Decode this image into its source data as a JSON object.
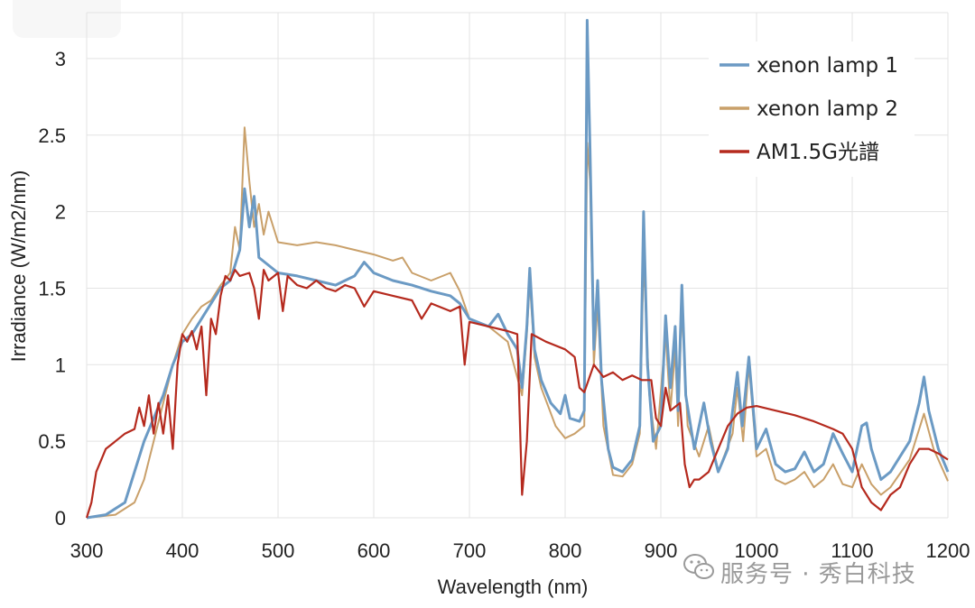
{
  "chart_data": {
    "type": "line",
    "title": "",
    "xlabel": "Wavelength (nm)",
    "ylabel": "Irradiance (W/m2/nm)",
    "xlim": [
      300,
      1200
    ],
    "ylim": [
      0,
      3.3
    ],
    "x_ticks": [
      "300",
      "400",
      "500",
      "600",
      "700",
      "800",
      "900",
      "1000",
      "1100",
      "1200"
    ],
    "y_ticks": [
      "0",
      "0.5",
      "1",
      "1.5",
      "2",
      "2.5",
      "3"
    ],
    "grid": true,
    "legend_position": "top-right",
    "series": [
      {
        "name": "xenon lamp 1",
        "color": "#6b9ac4",
        "points": [
          [
            300,
            0.0
          ],
          [
            320,
            0.02
          ],
          [
            340,
            0.1
          ],
          [
            350,
            0.3
          ],
          [
            360,
            0.5
          ],
          [
            370,
            0.65
          ],
          [
            380,
            0.8
          ],
          [
            390,
            1.0
          ],
          [
            400,
            1.15
          ],
          [
            410,
            1.2
          ],
          [
            420,
            1.3
          ],
          [
            430,
            1.4
          ],
          [
            440,
            1.5
          ],
          [
            450,
            1.55
          ],
          [
            460,
            1.75
          ],
          [
            465,
            2.15
          ],
          [
            470,
            1.9
          ],
          [
            475,
            2.1
          ],
          [
            480,
            1.7
          ],
          [
            490,
            1.65
          ],
          [
            500,
            1.6
          ],
          [
            520,
            1.58
          ],
          [
            540,
            1.55
          ],
          [
            560,
            1.52
          ],
          [
            580,
            1.58
          ],
          [
            590,
            1.67
          ],
          [
            600,
            1.6
          ],
          [
            620,
            1.55
          ],
          [
            640,
            1.52
          ],
          [
            660,
            1.48
          ],
          [
            680,
            1.45
          ],
          [
            690,
            1.4
          ],
          [
            700,
            1.3
          ],
          [
            720,
            1.25
          ],
          [
            730,
            1.33
          ],
          [
            740,
            1.2
          ],
          [
            750,
            1.1
          ],
          [
            755,
            0.85
          ],
          [
            760,
            1.25
          ],
          [
            763,
            1.63
          ],
          [
            768,
            1.1
          ],
          [
            775,
            0.9
          ],
          [
            785,
            0.75
          ],
          [
            795,
            0.68
          ],
          [
            800,
            0.8
          ],
          [
            805,
            0.65
          ],
          [
            815,
            0.63
          ],
          [
            820,
            0.7
          ],
          [
            823,
            3.25
          ],
          [
            826,
            2.4
          ],
          [
            830,
            1.1
          ],
          [
            834,
            1.55
          ],
          [
            838,
            0.9
          ],
          [
            845,
            0.45
          ],
          [
            850,
            0.33
          ],
          [
            860,
            0.3
          ],
          [
            870,
            0.38
          ],
          [
            878,
            0.6
          ],
          [
            882,
            2.0
          ],
          [
            886,
            1.0
          ],
          [
            892,
            0.5
          ],
          [
            900,
            0.6
          ],
          [
            905,
            1.32
          ],
          [
            910,
            0.85
          ],
          [
            915,
            1.25
          ],
          [
            918,
            0.7
          ],
          [
            922,
            1.52
          ],
          [
            926,
            0.8
          ],
          [
            935,
            0.45
          ],
          [
            945,
            0.75
          ],
          [
            952,
            0.5
          ],
          [
            960,
            0.3
          ],
          [
            970,
            0.45
          ],
          [
            980,
            0.95
          ],
          [
            985,
            0.6
          ],
          [
            992,
            1.05
          ],
          [
            1000,
            0.45
          ],
          [
            1010,
            0.58
          ],
          [
            1020,
            0.35
          ],
          [
            1030,
            0.3
          ],
          [
            1040,
            0.32
          ],
          [
            1050,
            0.43
          ],
          [
            1060,
            0.3
          ],
          [
            1070,
            0.35
          ],
          [
            1080,
            0.55
          ],
          [
            1090,
            0.42
          ],
          [
            1100,
            0.3
          ],
          [
            1110,
            0.6
          ],
          [
            1115,
            0.62
          ],
          [
            1120,
            0.45
          ],
          [
            1130,
            0.25
          ],
          [
            1140,
            0.3
          ],
          [
            1150,
            0.4
          ],
          [
            1160,
            0.5
          ],
          [
            1170,
            0.75
          ],
          [
            1175,
            0.92
          ],
          [
            1180,
            0.7
          ],
          [
            1190,
            0.45
          ],
          [
            1200,
            0.3
          ]
        ]
      },
      {
        "name": "xenon lamp 2",
        "color": "#c9a06a",
        "points": [
          [
            300,
            0.0
          ],
          [
            330,
            0.02
          ],
          [
            350,
            0.1
          ],
          [
            360,
            0.25
          ],
          [
            370,
            0.5
          ],
          [
            380,
            0.75
          ],
          [
            390,
            1.0
          ],
          [
            400,
            1.2
          ],
          [
            410,
            1.3
          ],
          [
            420,
            1.38
          ],
          [
            430,
            1.42
          ],
          [
            440,
            1.52
          ],
          [
            450,
            1.6
          ],
          [
            455,
            1.9
          ],
          [
            460,
            1.75
          ],
          [
            465,
            2.55
          ],
          [
            470,
            2.2
          ],
          [
            475,
            1.9
          ],
          [
            480,
            2.05
          ],
          [
            485,
            1.85
          ],
          [
            490,
            2.0
          ],
          [
            500,
            1.8
          ],
          [
            520,
            1.78
          ],
          [
            540,
            1.8
          ],
          [
            560,
            1.78
          ],
          [
            580,
            1.75
          ],
          [
            600,
            1.72
          ],
          [
            620,
            1.68
          ],
          [
            630,
            1.7
          ],
          [
            640,
            1.6
          ],
          [
            660,
            1.55
          ],
          [
            680,
            1.6
          ],
          [
            690,
            1.48
          ],
          [
            700,
            1.3
          ],
          [
            720,
            1.25
          ],
          [
            740,
            1.15
          ],
          [
            755,
            0.8
          ],
          [
            760,
            1.2
          ],
          [
            763,
            1.55
          ],
          [
            768,
            1.05
          ],
          [
            775,
            0.85
          ],
          [
            790,
            0.6
          ],
          [
            800,
            0.52
          ],
          [
            810,
            0.55
          ],
          [
            820,
            0.6
          ],
          [
            823,
            2.45
          ],
          [
            826,
            2.2
          ],
          [
            830,
            1.0
          ],
          [
            834,
            1.4
          ],
          [
            840,
            0.6
          ],
          [
            850,
            0.28
          ],
          [
            860,
            0.27
          ],
          [
            870,
            0.35
          ],
          [
            878,
            0.55
          ],
          [
            882,
            1.7
          ],
          [
            888,
            0.8
          ],
          [
            895,
            0.45
          ],
          [
            905,
            1.2
          ],
          [
            910,
            0.7
          ],
          [
            915,
            1.1
          ],
          [
            918,
            0.6
          ],
          [
            922,
            1.38
          ],
          [
            928,
            0.6
          ],
          [
            940,
            0.4
          ],
          [
            950,
            0.6
          ],
          [
            960,
            0.3
          ],
          [
            975,
            0.55
          ],
          [
            980,
            0.85
          ],
          [
            986,
            0.5
          ],
          [
            992,
            1.0
          ],
          [
            1000,
            0.4
          ],
          [
            1010,
            0.45
          ],
          [
            1020,
            0.25
          ],
          [
            1030,
            0.22
          ],
          [
            1040,
            0.25
          ],
          [
            1050,
            0.3
          ],
          [
            1060,
            0.2
          ],
          [
            1070,
            0.25
          ],
          [
            1080,
            0.35
          ],
          [
            1090,
            0.22
          ],
          [
            1100,
            0.2
          ],
          [
            1110,
            0.35
          ],
          [
            1120,
            0.22
          ],
          [
            1130,
            0.15
          ],
          [
            1140,
            0.2
          ],
          [
            1160,
            0.38
          ],
          [
            1175,
            0.68
          ],
          [
            1185,
            0.45
          ],
          [
            1200,
            0.24
          ]
        ]
      },
      {
        "name": "AM1.5G光譜",
        "color": "#b52a1e",
        "points": [
          [
            300,
            0.0
          ],
          [
            305,
            0.1
          ],
          [
            310,
            0.3
          ],
          [
            320,
            0.45
          ],
          [
            330,
            0.5
          ],
          [
            340,
            0.55
          ],
          [
            350,
            0.58
          ],
          [
            355,
            0.72
          ],
          [
            360,
            0.6
          ],
          [
            365,
            0.8
          ],
          [
            370,
            0.55
          ],
          [
            375,
            0.75
          ],
          [
            380,
            0.55
          ],
          [
            385,
            0.8
          ],
          [
            390,
            0.45
          ],
          [
            395,
            1.0
          ],
          [
            400,
            1.2
          ],
          [
            405,
            1.15
          ],
          [
            410,
            1.22
          ],
          [
            415,
            1.1
          ],
          [
            420,
            1.25
          ],
          [
            425,
            0.8
          ],
          [
            430,
            1.3
          ],
          [
            435,
            1.2
          ],
          [
            440,
            1.45
          ],
          [
            445,
            1.58
          ],
          [
            450,
            1.55
          ],
          [
            455,
            1.62
          ],
          [
            460,
            1.58
          ],
          [
            470,
            1.6
          ],
          [
            475,
            1.5
          ],
          [
            480,
            1.3
          ],
          [
            485,
            1.62
          ],
          [
            490,
            1.55
          ],
          [
            500,
            1.6
          ],
          [
            505,
            1.35
          ],
          [
            510,
            1.58
          ],
          [
            520,
            1.52
          ],
          [
            530,
            1.5
          ],
          [
            540,
            1.55
          ],
          [
            550,
            1.5
          ],
          [
            560,
            1.48
          ],
          [
            570,
            1.52
          ],
          [
            580,
            1.5
          ],
          [
            590,
            1.38
          ],
          [
            600,
            1.48
          ],
          [
            620,
            1.45
          ],
          [
            640,
            1.42
          ],
          [
            650,
            1.3
          ],
          [
            660,
            1.4
          ],
          [
            680,
            1.35
          ],
          [
            690,
            1.38
          ],
          [
            695,
            1.0
          ],
          [
            700,
            1.28
          ],
          [
            720,
            1.25
          ],
          [
            740,
            1.22
          ],
          [
            750,
            1.2
          ],
          [
            755,
            0.15
          ],
          [
            760,
            0.5
          ],
          [
            765,
            1.2
          ],
          [
            780,
            1.15
          ],
          [
            800,
            1.1
          ],
          [
            810,
            1.05
          ],
          [
            815,
            0.85
          ],
          [
            820,
            0.82
          ],
          [
            830,
            1.0
          ],
          [
            840,
            0.92
          ],
          [
            850,
            0.95
          ],
          [
            860,
            0.9
          ],
          [
            870,
            0.93
          ],
          [
            880,
            0.9
          ],
          [
            890,
            0.9
          ],
          [
            895,
            0.65
          ],
          [
            900,
            0.6
          ],
          [
            905,
            0.85
          ],
          [
            910,
            0.7
          ],
          [
            920,
            0.75
          ],
          [
            925,
            0.35
          ],
          [
            930,
            0.2
          ],
          [
            935,
            0.25
          ],
          [
            940,
            0.25
          ],
          [
            950,
            0.3
          ],
          [
            960,
            0.45
          ],
          [
            970,
            0.6
          ],
          [
            980,
            0.68
          ],
          [
            990,
            0.72
          ],
          [
            1000,
            0.73
          ],
          [
            1020,
            0.7
          ],
          [
            1040,
            0.67
          ],
          [
            1060,
            0.63
          ],
          [
            1080,
            0.58
          ],
          [
            1090,
            0.55
          ],
          [
            1100,
            0.45
          ],
          [
            1110,
            0.2
          ],
          [
            1120,
            0.1
          ],
          [
            1130,
            0.05
          ],
          [
            1140,
            0.15
          ],
          [
            1150,
            0.2
          ],
          [
            1160,
            0.35
          ],
          [
            1170,
            0.45
          ],
          [
            1180,
            0.45
          ],
          [
            1190,
            0.42
          ],
          [
            1200,
            0.38
          ]
        ]
      }
    ]
  },
  "watermark": {
    "text": "服务号 · 秀白科技"
  }
}
